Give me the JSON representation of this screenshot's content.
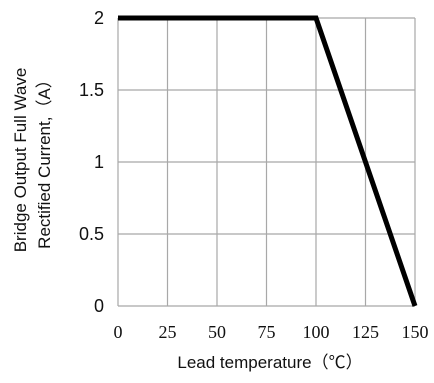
{
  "chart_data": {
    "type": "line",
    "xlabel": "Lead temperature（℃）",
    "ylabel_lines": [
      "Bridge Output Full Wave",
      "Rectified Current,（A）"
    ],
    "xlim": [
      0,
      150
    ],
    "ylim": [
      0,
      2
    ],
    "xticks": [
      0,
      25,
      50,
      75,
      100,
      125,
      150
    ],
    "yticks": [
      0,
      0.5,
      1,
      1.5,
      2
    ],
    "xtick_labels": [
      "0",
      "25",
      "50",
      "75",
      "100",
      "125",
      "150"
    ],
    "ytick_labels": [
      "0",
      "0.5",
      "1",
      "1.5",
      "2"
    ],
    "grid": true,
    "series": [
      {
        "x": [
          0,
          100,
          150
        ],
        "y": [
          2,
          2,
          0
        ],
        "color": "#000000"
      }
    ]
  }
}
